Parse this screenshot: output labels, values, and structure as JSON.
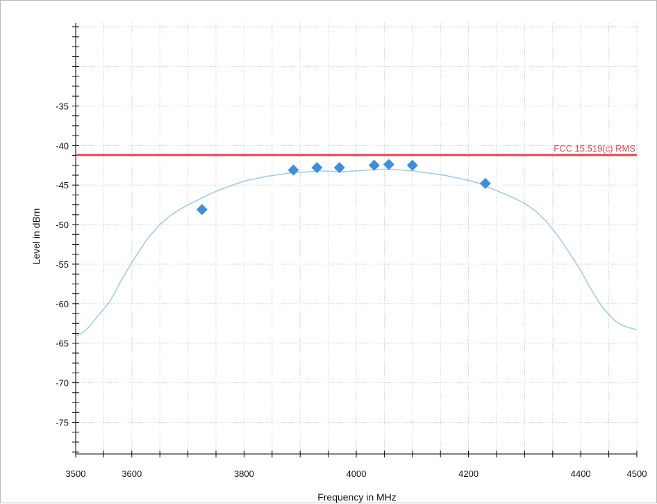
{
  "chart_data": {
    "type": "line",
    "xlabel": "Frequency in MHz",
    "ylabel": "Level in dBm",
    "xlim": [
      3500,
      4500
    ],
    "ylim": [
      -79,
      -24.5
    ],
    "x_ticks": [
      3500,
      3600,
      3800,
      4000,
      4200,
      4400,
      4500
    ],
    "y_ticks": [
      -35,
      -40,
      -45,
      -50,
      -55,
      -60,
      -65,
      -70,
      -75
    ],
    "x_minor_step": 50,
    "y_minor_step": 1.25,
    "grid": true,
    "limit_line": {
      "label": "FCC 15.519(c) RMS",
      "y": -41.2,
      "color": "#e8434d"
    },
    "series": [
      {
        "style": "trace",
        "color": "#9ccaf2",
        "x": [
          3500,
          3510,
          3520,
          3530,
          3540,
          3550,
          3560,
          3570,
          3580,
          3590,
          3600,
          3610,
          3620,
          3630,
          3640,
          3650,
          3660,
          3670,
          3680,
          3690,
          3700,
          3720,
          3740,
          3760,
          3780,
          3800,
          3820,
          3840,
          3860,
          3880,
          3900,
          3920,
          3940,
          3960,
          3980,
          4000,
          4020,
          4040,
          4060,
          4080,
          4100,
          4120,
          4140,
          4160,
          4180,
          4200,
          4220,
          4240,
          4260,
          4280,
          4300,
          4320,
          4340,
          4360,
          4380,
          4400,
          4420,
          4440,
          4460,
          4470,
          4480,
          4490,
          4500
        ],
        "y": [
          -64.1,
          -63.8,
          -63.2,
          -62.4,
          -61.5,
          -60.7,
          -59.8,
          -58.6,
          -57.2,
          -56.0,
          -54.8,
          -53.7,
          -52.6,
          -51.6,
          -50.8,
          -50.0,
          -49.4,
          -48.8,
          -48.3,
          -47.9,
          -47.5,
          -46.8,
          -46.1,
          -45.5,
          -45.0,
          -44.5,
          -44.2,
          -43.9,
          -43.7,
          -43.5,
          -43.4,
          -43.3,
          -43.2,
          -43.3,
          -43.3,
          -43.2,
          -43.1,
          -43.0,
          -43.0,
          -43.1,
          -43.2,
          -43.4,
          -43.6,
          -43.8,
          -44.1,
          -44.4,
          -44.8,
          -45.4,
          -46.0,
          -46.6,
          -47.3,
          -48.3,
          -49.7,
          -51.5,
          -53.6,
          -55.8,
          -58.4,
          -60.6,
          -62.1,
          -62.6,
          -62.9,
          -63.1,
          -63.3
        ]
      },
      {
        "style": "markers",
        "color": "#3d8fdc",
        "x": [
          3725,
          3888,
          3930,
          3970,
          4032,
          4058,
          4100,
          4230
        ],
        "y": [
          -48.1,
          -43.1,
          -42.8,
          -42.8,
          -42.5,
          -42.4,
          -42.5,
          -44.8
        ]
      }
    ]
  }
}
